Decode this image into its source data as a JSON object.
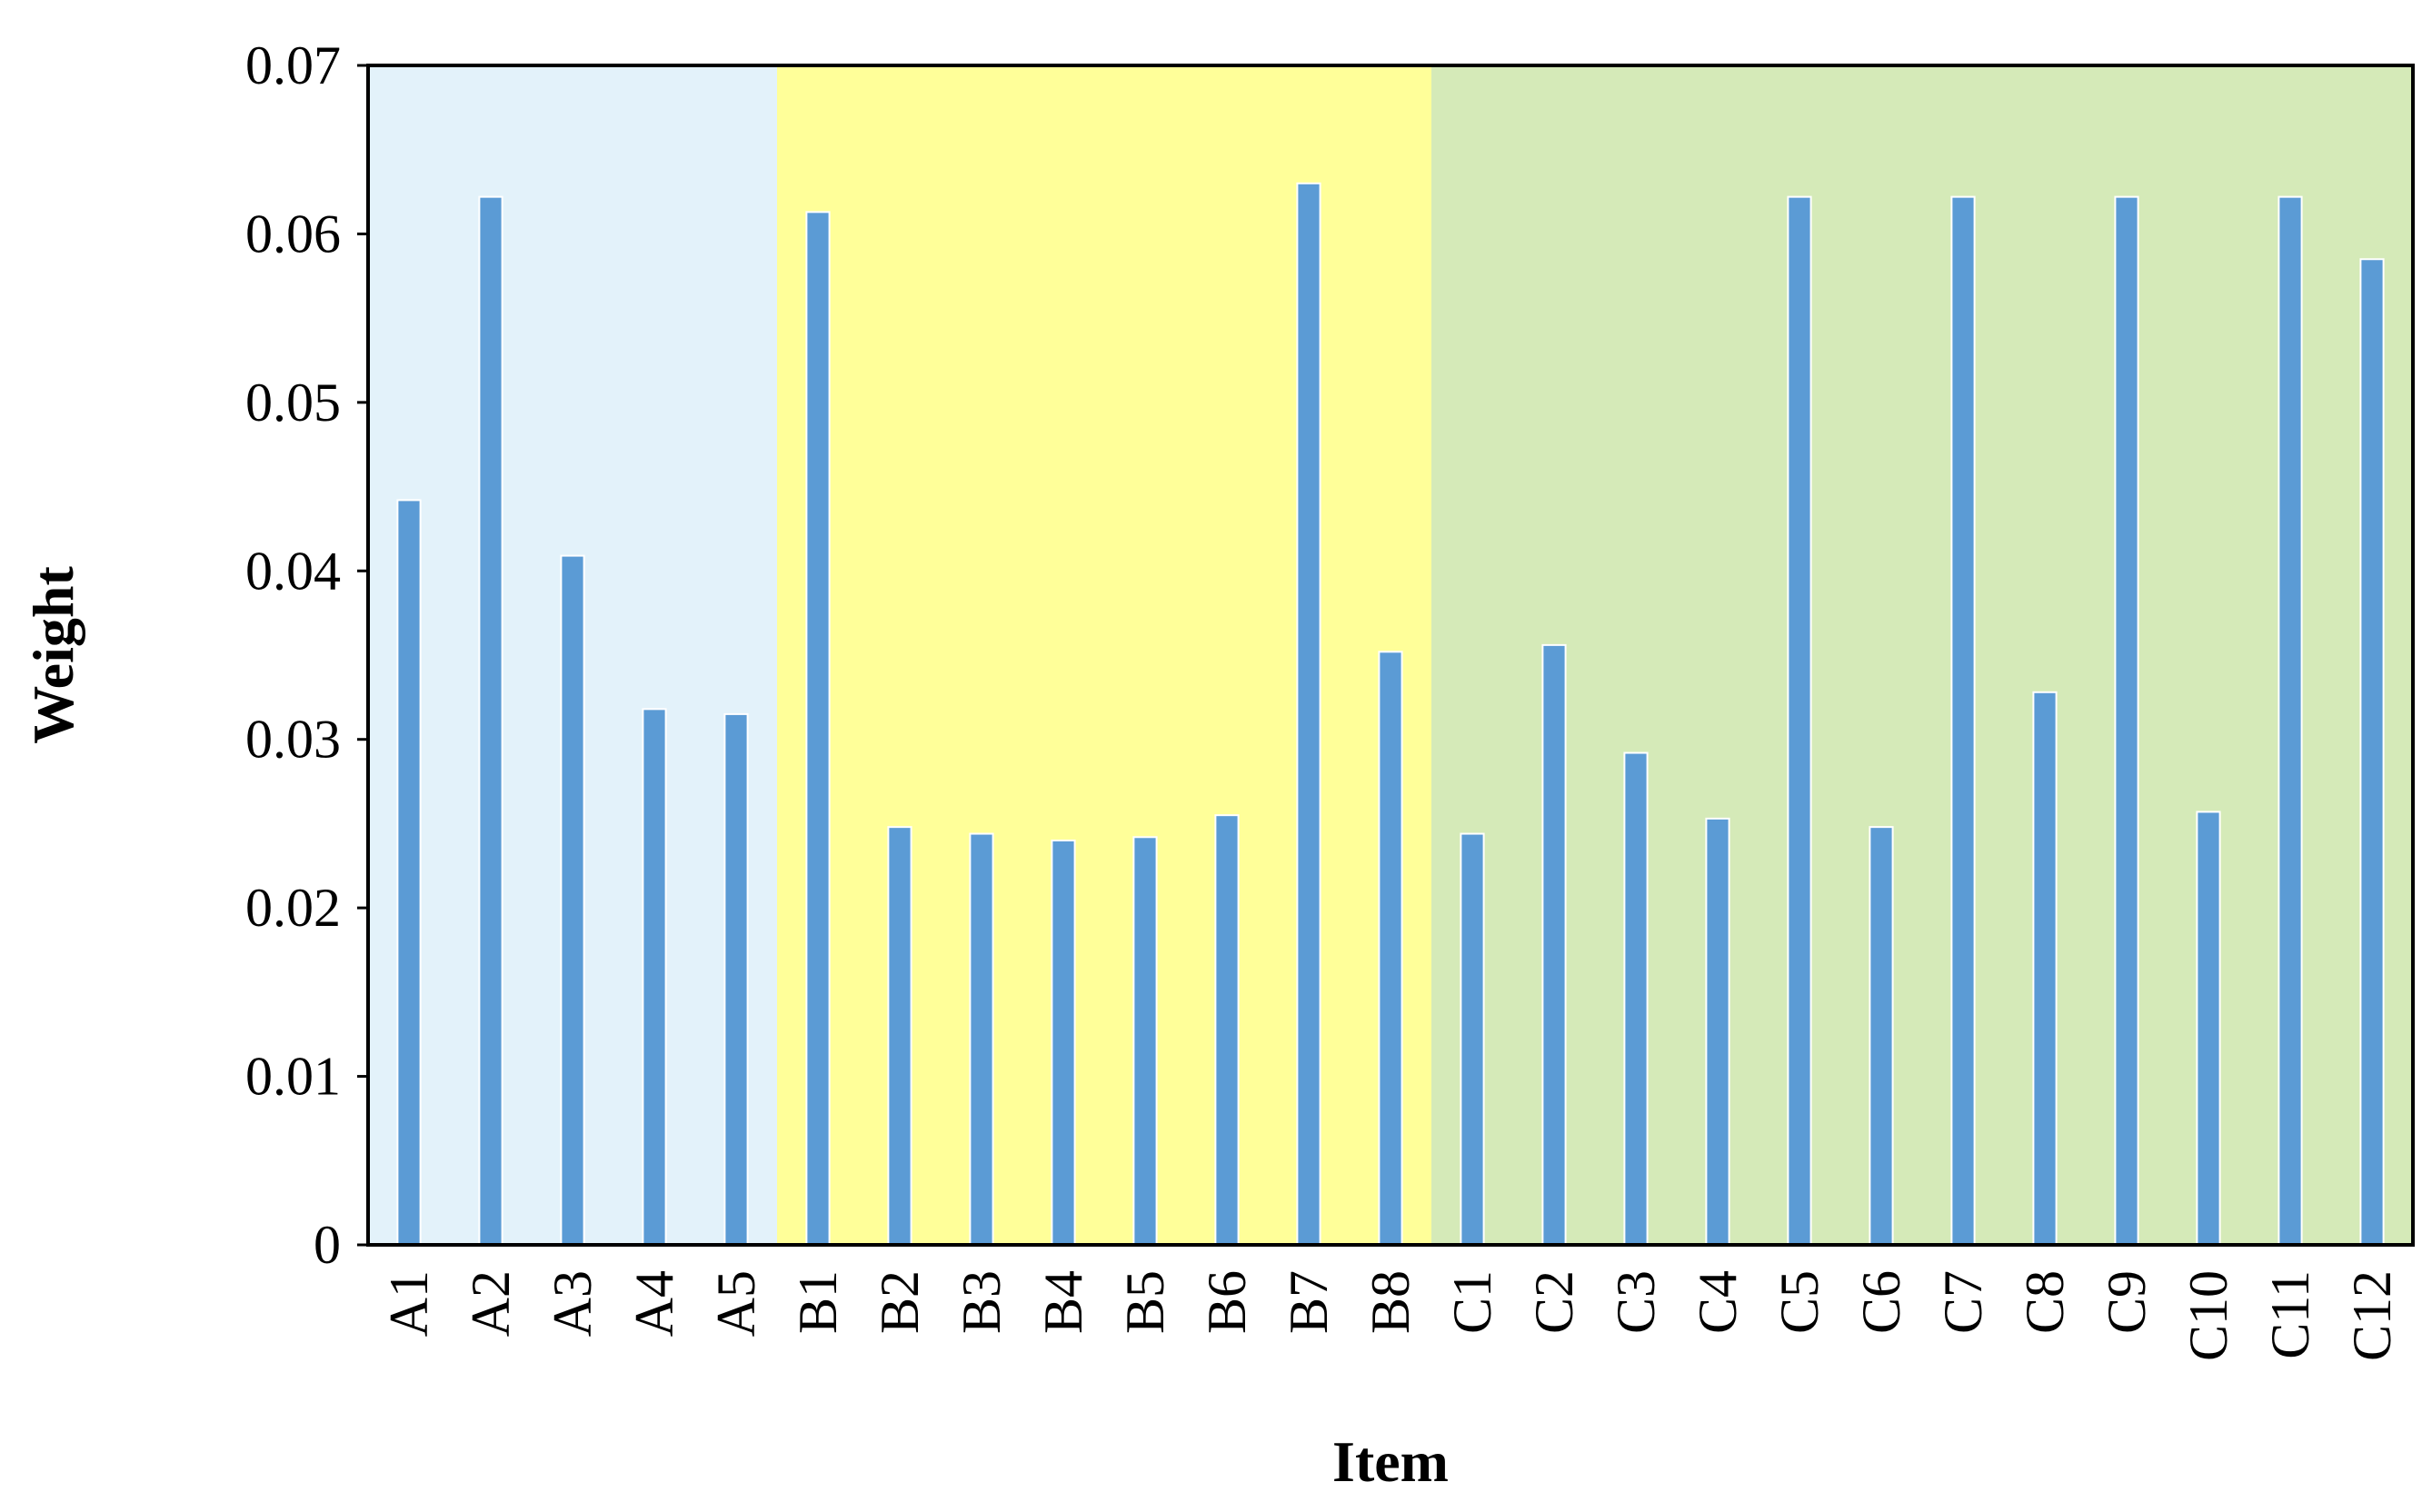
{
  "chart_data": {
    "type": "bar",
    "title": "",
    "xlabel": "Item",
    "ylabel": "Weight",
    "ylim": [
      0,
      0.07
    ],
    "yticks": [
      "0",
      "0.01",
      "0.02",
      "0.03",
      "0.04",
      "0.05",
      "0.06",
      "0.07"
    ],
    "grid": false,
    "legend": "none",
    "bar_color": "#5b9bd5",
    "categories": [
      "A1",
      "A2",
      "A3",
      "A4",
      "A5",
      "B1",
      "B2",
      "B3",
      "B4",
      "B5",
      "B6",
      "B7",
      "B8",
      "C1",
      "C2",
      "C3",
      "C4",
      "C5",
      "C6",
      "C7",
      "C8",
      "C9",
      "C10",
      "C11",
      "C12"
    ],
    "values": [
      0.0442,
      0.0622,
      0.0409,
      0.0318,
      0.0315,
      0.0613,
      0.0248,
      0.0244,
      0.024,
      0.0242,
      0.0255,
      0.063,
      0.0352,
      0.0244,
      0.0356,
      0.0292,
      0.0253,
      0.0622,
      0.0248,
      0.0622,
      0.0328,
      0.0622,
      0.0257,
      0.0622,
      0.0585
    ],
    "groups": [
      {
        "start": 0,
        "end": 4,
        "color": "#e3f2fa"
      },
      {
        "start": 5,
        "end": 12,
        "color": "#ffff99"
      },
      {
        "start": 13,
        "end": 24,
        "color": "#d5eab8"
      }
    ]
  }
}
